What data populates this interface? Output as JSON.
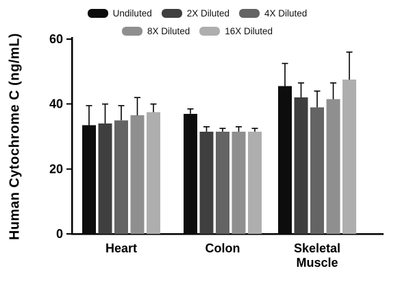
{
  "chart_data": {
    "type": "bar",
    "title": "",
    "xlabel": "",
    "ylabel": "Human Cytochrome C (ng/mL)",
    "ylim": [
      0,
      60
    ],
    "yticks": [
      0,
      20,
      40,
      60
    ],
    "grid": false,
    "legend_position": "top",
    "axis_color": "#000000",
    "error_bar_color": "#000000",
    "categories": [
      "Heart",
      "Colon",
      "Skeletal Muscle"
    ],
    "category_lines": [
      [
        "Heart"
      ],
      [
        "Colon"
      ],
      [
        "Skeletal",
        "Muscle"
      ]
    ],
    "series": [
      {
        "name": "Undiluted",
        "color": "#0d0d0d",
        "values": [
          33.5,
          37.0,
          45.5
        ],
        "errors": [
          6.0,
          1.5,
          7.0
        ]
      },
      {
        "name": "2X Diluted",
        "color": "#3f3f3f",
        "values": [
          34.0,
          31.5,
          42.0
        ],
        "errors": [
          6.0,
          1.5,
          4.5
        ]
      },
      {
        "name": "4X Diluted",
        "color": "#646464",
        "values": [
          35.0,
          31.5,
          39.0
        ],
        "errors": [
          4.5,
          1.0,
          5.0
        ]
      },
      {
        "name": "8X Diluted",
        "color": "#8f8f8f",
        "values": [
          36.5,
          31.5,
          41.5
        ],
        "errors": [
          5.5,
          1.5,
          5.0
        ]
      },
      {
        "name": "16X Diluted",
        "color": "#aeaeae",
        "values": [
          37.5,
          31.5,
          47.5
        ],
        "errors": [
          2.5,
          1.0,
          8.5
        ]
      }
    ]
  }
}
